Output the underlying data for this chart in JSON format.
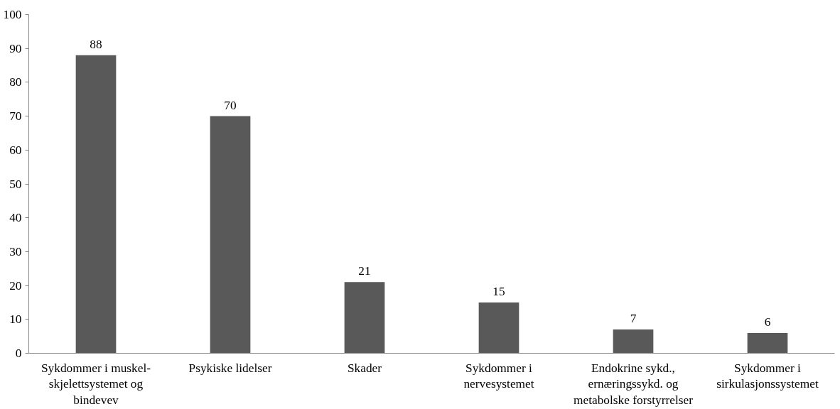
{
  "chart_data": {
    "type": "bar",
    "categories": [
      "Sykdommer i muskel-\nskjelettsystemet og\nbindevev",
      "Psykiske lidelser",
      "Skader",
      "Sykdommer i\nnervesystemet",
      "Endokrine sykd.,\nernæringssykd. og\nmetabolske forstyrrelser",
      "Sykdommer i\nsirkulasjonssystemet"
    ],
    "values": [
      88,
      70,
      21,
      15,
      7,
      6
    ],
    "color": "#595959",
    "ylim": [
      0,
      100
    ],
    "yticks": [
      0,
      10,
      20,
      30,
      40,
      50,
      60,
      70,
      80,
      90,
      100
    ],
    "grid": false,
    "data_labels": true
  }
}
